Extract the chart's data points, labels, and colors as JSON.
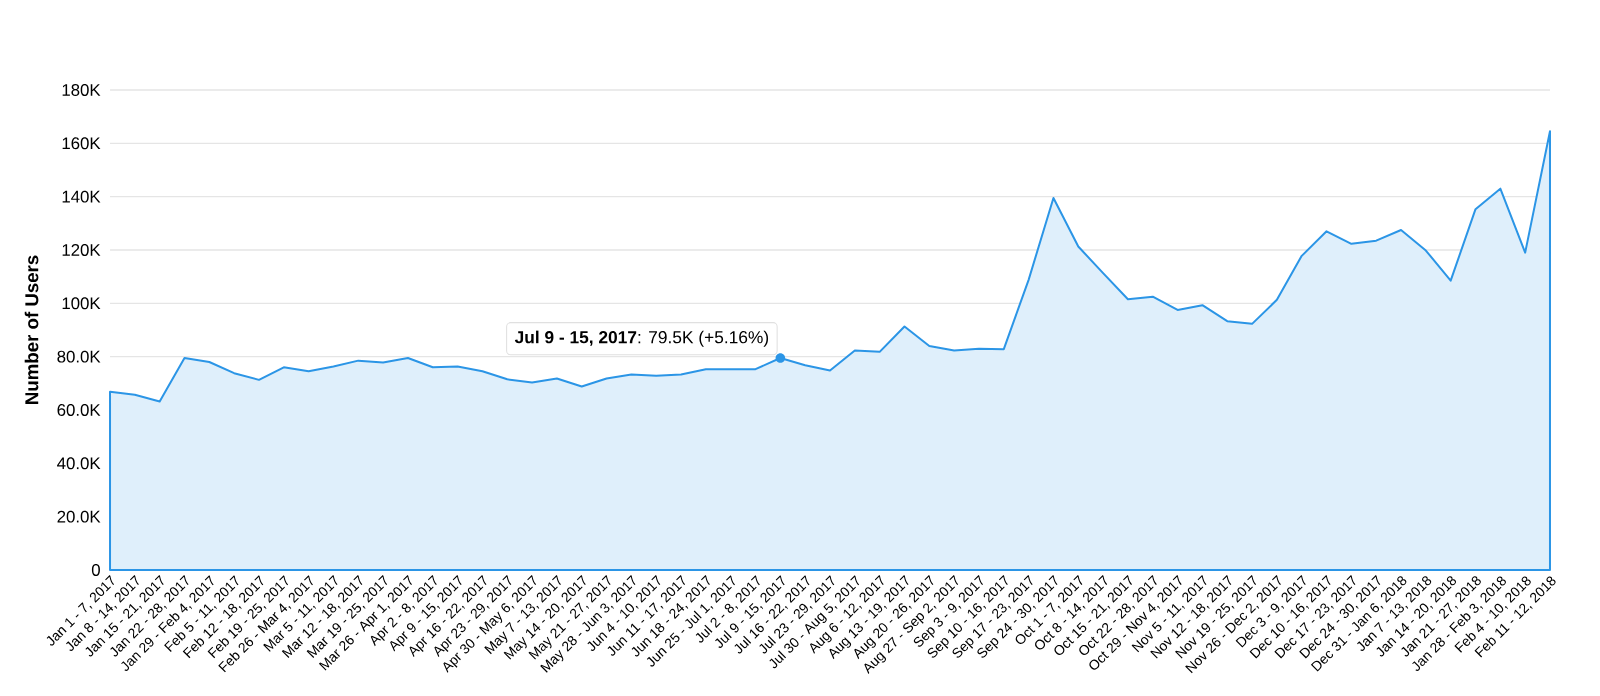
{
  "chart_data": {
    "type": "area",
    "ylabel": "Number of Users",
    "categories": [
      "Jan 1 - 7, 2017",
      "Jan 8 - 14, 2017",
      "Jan 15 - 21, 2017",
      "Jan 22 - 28, 2017",
      "Jan 29 - Feb 4, 2017",
      "Feb 5 - 11, 2017",
      "Feb 12 - 18, 2017",
      "Feb 19 - 25, 2017",
      "Feb 26 - Mar 4, 2017",
      "Mar 5 - 11, 2017",
      "Mar 12 - 18, 2017",
      "Mar 19 - 25, 2017",
      "Mar 26 - Apr 1, 2017",
      "Apr 2 - 8, 2017",
      "Apr 9 - 15, 2017",
      "Apr 16 - 22, 2017",
      "Apr 23 - 29, 2017",
      "Apr 30 - May 6, 2017",
      "May 7 - 13, 2017",
      "May 14 - 20, 2017",
      "May 21 - 27, 2017",
      "May 28 - Jun 3, 2017",
      "Jun 4 - 10, 2017",
      "Jun 11 - 17, 2017",
      "Jun 18 - 24, 2017",
      "Jun 25 - Jul 1, 2017",
      "Jul 2 - 8, 2017",
      "Jul 9 - 15, 2017",
      "Jul 16 - 22, 2017",
      "Jul 23 - 29, 2017",
      "Jul 30 - Aug 5, 2017",
      "Aug 6 - 12, 2017",
      "Aug 13 - 19, 2017",
      "Aug 20 - 26, 2017",
      "Aug 27 - Sep 2, 2017",
      "Sep 3 - 9, 2017",
      "Sep 10 - 16, 2017",
      "Sep 17 - 23, 2017",
      "Sep 24 - 30, 2017",
      "Oct 1 - 7, 2017",
      "Oct 8 - 14, 2017",
      "Oct 15 - 21, 2017",
      "Oct 22 - 28, 2017",
      "Oct 29 - Nov 4, 2017",
      "Nov 5 - 11, 2017",
      "Nov 12 - 18, 2017",
      "Nov 19 - 25, 2017",
      "Nov 26 - Dec 2, 2017",
      "Dec 3 - 9, 2017",
      "Dec 10 - 16, 2017",
      "Dec 17 - 23, 2017",
      "Dec 24 - 30, 2017",
      "Dec 31 - Jan 6, 2018",
      "Jan 7 - 13, 2018",
      "Jan 14 - 20, 2018",
      "Jan 21 - 27, 2018",
      "Jan 28 - Feb 3, 2018",
      "Feb 4 - 10, 2018",
      "Feb 11 - 12, 2018"
    ],
    "values": [
      66800,
      65700,
      63200,
      79500,
      78000,
      73800,
      71300,
      76000,
      74500,
      76300,
      78500,
      77800,
      79500,
      76000,
      76300,
      74500,
      71500,
      70300,
      71800,
      68800,
      71800,
      73300,
      72800,
      73300,
      75300,
      75300,
      75300,
      79500,
      76800,
      74800,
      82300,
      81800,
      91300,
      84000,
      82300,
      83000,
      82800,
      108800,
      139500,
      121300,
      111300,
      101500,
      102500,
      97500,
      99300,
      93300,
      92300,
      101300,
      117800,
      127000,
      122300,
      123500,
      127500,
      119800,
      108500,
      135300,
      143000,
      119000,
      164500
    ],
    "color": "#2b95e6",
    "ylim": [
      0,
      180000
    ],
    "yticks": [
      0,
      {
        "value": 20000,
        "label": "20.0K"
      },
      {
        "value": 40000,
        "label": "40.0K"
      },
      {
        "value": 60000,
        "label": "60.0K"
      },
      {
        "value": 80000,
        "label": "80.0K"
      },
      {
        "value": 100000,
        "label": "100K"
      },
      {
        "value": 120000,
        "label": "120K"
      },
      {
        "value": 140000,
        "label": "140K"
      },
      {
        "value": 160000,
        "label": "160K"
      },
      {
        "value": 180000,
        "label": "180K"
      }
    ],
    "grid": "y",
    "annotations": [
      {
        "text": "**Jul 9 - 15, 2017**: 79.5K (+5.16%)",
        "x": "Jul 9 - 15, 2017",
        "y": 79500
      }
    ]
  }
}
